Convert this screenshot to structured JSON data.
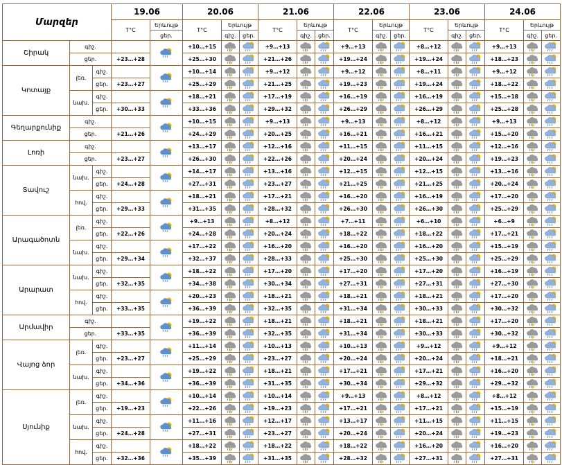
{
  "header": {
    "title": "Մարզեր",
    "dates": [
      "19.06",
      "20.06",
      "21.06",
      "22.06",
      "23.06",
      "24.06"
    ],
    "temp": "T°C",
    "phen": "Երևույթ",
    "night": "գիշ.",
    "day": "ցեր."
  },
  "regions": [
    {
      "name": "Շիրակ",
      "areas": [
        {
          "rows": [
            {
              "label": "գիշ.",
              "temps": [
                null,
                "+10…+15",
                "+9…+13",
                "+9…+13",
                "+8…+12",
                "+9…+13"
              ]
            },
            {
              "label": "ցեր.",
              "temps": [
                "+23…+28",
                "+25…+30",
                "+21…+26",
                "+19…+24",
                "+19…+24",
                "+18…+23"
              ]
            }
          ]
        }
      ]
    },
    {
      "name": "Կոտայք",
      "areas": [
        {
          "name": "լեռ.",
          "rows": [
            {
              "label": "գիշ.",
              "temps": [
                null,
                "+10…+14",
                "+9…+12",
                "+9…+12",
                "+8…+11",
                "+9…+12"
              ]
            },
            {
              "label": "ցեր.",
              "temps": [
                "+23…+27",
                "+25…+29",
                "+21…+25",
                "+19…+23",
                "+19…+24",
                "+18…+22"
              ]
            }
          ]
        },
        {
          "name": "նախ.",
          "rows": [
            {
              "label": "գիշ.",
              "temps": [
                null,
                "+18…+21",
                "+17…+19",
                "+16…+19",
                "+16…+19",
                "+15…+18"
              ]
            },
            {
              "label": "ցեր.",
              "temps": [
                "+30…+33",
                "+33…+36",
                "+29…+32",
                "+26…+29",
                "+26…+29",
                "+25…+28"
              ]
            }
          ]
        }
      ]
    },
    {
      "name": "Գեղարքունիք",
      "areas": [
        {
          "rows": [
            {
              "label": "գիշ.",
              "temps": [
                null,
                "+10…+15",
                "+9…+13",
                "+9…+13",
                "+8…+12",
                "+9…+13"
              ]
            },
            {
              "label": "ցեր.",
              "temps": [
                "+21…+26",
                "+24…+29",
                "+20…+25",
                "+16…+21",
                "+16…+21",
                "+15…+20"
              ]
            }
          ]
        }
      ]
    },
    {
      "name": "Լոռի",
      "areas": [
        {
          "rows": [
            {
              "label": "գիշ.",
              "temps": [
                null,
                "+13…+17",
                "+12…+16",
                "+11…+15",
                "+11…+15",
                "+12…+16"
              ]
            },
            {
              "label": "ցեր.",
              "temps": [
                "+23…+27",
                "+26…+30",
                "+22…+26",
                "+20…+24",
                "+20…+24",
                "+19…+23"
              ]
            }
          ]
        }
      ]
    },
    {
      "name": "Տավուշ",
      "areas": [
        {
          "name": "նախ.",
          "rows": [
            {
              "label": "գիշ.",
              "temps": [
                null,
                "+14…+17",
                "+13…+16",
                "+12…+15",
                "+12…+15",
                "+13…+16"
              ]
            },
            {
              "label": "ցեր.",
              "temps": [
                "+24…+28",
                "+27…+31",
                "+23…+27",
                "+21…+25",
                "+21…+25",
                "+20…+24"
              ]
            }
          ]
        },
        {
          "name": "հով.",
          "rows": [
            {
              "label": "գիշ.",
              "temps": [
                null,
                "+18…+21",
                "+17…+21",
                "+16…+20",
                "+16…+19",
                "+17…+20"
              ]
            },
            {
              "label": "ցեր.",
              "temps": [
                "+29…+33",
                "+31…+35",
                "+28…+32",
                "+26…+30",
                "+26…+30",
                "+25…+29"
              ]
            }
          ]
        }
      ]
    },
    {
      "name": "Արագածոտն",
      "areas": [
        {
          "name": "լեռ.",
          "rows": [
            {
              "label": "գիշ.",
              "temps": [
                null,
                "+9…+13",
                "+8…+12",
                "+7…+11",
                "+6…+10",
                "+6…+9"
              ]
            },
            {
              "label": "ցեր.",
              "temps": [
                "+22…+26",
                "+24…+28",
                "+20…+24",
                "+18…+22",
                "+18…+22",
                "+17…+21"
              ]
            }
          ]
        },
        {
          "name": "նախ.",
          "rows": [
            {
              "label": "գիշ.",
              "temps": [
                null,
                "+17…+22",
                "+16…+20",
                "+16…+20",
                "+16…+20",
                "+15…+19"
              ]
            },
            {
              "label": "ցեր.",
              "temps": [
                "+29…+34",
                "+32…+37",
                "+28…+33",
                "+25…+30",
                "+25…+30",
                "+25…+29"
              ]
            }
          ]
        }
      ]
    },
    {
      "name": "Արարատ",
      "areas": [
        {
          "name": "նախ.",
          "rows": [
            {
              "label": "գիշ.",
              "temps": [
                null,
                "+18…+22",
                "+17…+20",
                "+17…+20",
                "+17…+20",
                "+16…+19"
              ]
            },
            {
              "label": "ցեր.",
              "temps": [
                "+32…+35",
                "+34…+38",
                "+30…+34",
                "+27…+31",
                "+27…+31",
                "+27…+30"
              ]
            }
          ]
        },
        {
          "name": "հով.",
          "rows": [
            {
              "label": "գիշ.",
              "temps": [
                null,
                "+20…+23",
                "+18…+21",
                "+18…+21",
                "+18…+21",
                "+17…+20"
              ]
            },
            {
              "label": "ցեր.",
              "temps": [
                "+33…+35",
                "+36…+39",
                "+32…+35",
                "+31…+34",
                "+30…+33",
                "+30…+32"
              ]
            }
          ]
        }
      ]
    },
    {
      "name": "Արմավիր",
      "areas": [
        {
          "rows": [
            {
              "label": "գիշ.",
              "temps": [
                null,
                "+19…+22",
                "+18…+21",
                "+18…+21",
                "+18…+21",
                "+17…+20"
              ]
            },
            {
              "label": "ցեր.",
              "temps": [
                "+33…+35",
                "+36…+39",
                "+32…+35",
                "+31…+34",
                "+30…+33",
                "+30…+32"
              ]
            }
          ]
        }
      ]
    },
    {
      "name": "Վայոց ձոր",
      "areas": [
        {
          "name": "լեռ.",
          "rows": [
            {
              "label": "գիշ.",
              "temps": [
                null,
                "+11…+14",
                "+10…+13",
                "+10…+13",
                "+9…+12",
                "+9…+12"
              ]
            },
            {
              "label": "ցեր.",
              "temps": [
                "+23…+27",
                "+25…+29",
                "+23…+27",
                "+20…+24",
                "+20…+24",
                "+18…+21"
              ]
            }
          ]
        },
        {
          "name": "նախ.",
          "rows": [
            {
              "label": "գիշ.",
              "temps": [
                null,
                "+19…+22",
                "+18…+21",
                "+17…+21",
                "+17…+21",
                "+16…+20"
              ]
            },
            {
              "label": "ցեր.",
              "temps": [
                "+34…+36",
                "+36…+39",
                "+31…+35",
                "+30…+34",
                "+29…+32",
                "+29…+32"
              ]
            }
          ]
        }
      ]
    },
    {
      "name": "Սյունիք",
      "areas": [
        {
          "name": "լեռ.",
          "rows": [
            {
              "label": "գիշ.",
              "temps": [
                null,
                "+10…+14",
                "+10…+14",
                "+9…+13",
                "+8…+12",
                "+8…+12"
              ]
            },
            {
              "label": "ցեր.",
              "temps": [
                "+19…+23",
                "+22…+26",
                "+19…+23",
                "+17…+21",
                "+17…+21",
                "+15…+19"
              ]
            }
          ]
        },
        {
          "name": "նախ.",
          "rows": [
            {
              "label": "գիշ.",
              "temps": [
                null,
                "+11…+16",
                "+12…+17",
                "+13…+17",
                "+11…+15",
                "+11…+15"
              ]
            },
            {
              "label": "ցեր.",
              "temps": [
                "+24…+28",
                "+27…+31",
                "+23…+27",
                "+20…+24",
                "+20…+24",
                "+19…+23"
              ]
            }
          ]
        },
        {
          "name": "հով.",
          "rows": [
            {
              "label": "գիշ.",
              "temps": [
                null,
                "+18…+22",
                "+18…+22",
                "+18…+22",
                "+16…+20",
                "+16…+20"
              ]
            },
            {
              "label": "ցեր.",
              "temps": [
                "+32…+36",
                "+35…+39",
                "+31…+35",
                "+28…+32",
                "+27…+31",
                "+27…+31"
              ]
            }
          ]
        }
      ]
    }
  ]
}
